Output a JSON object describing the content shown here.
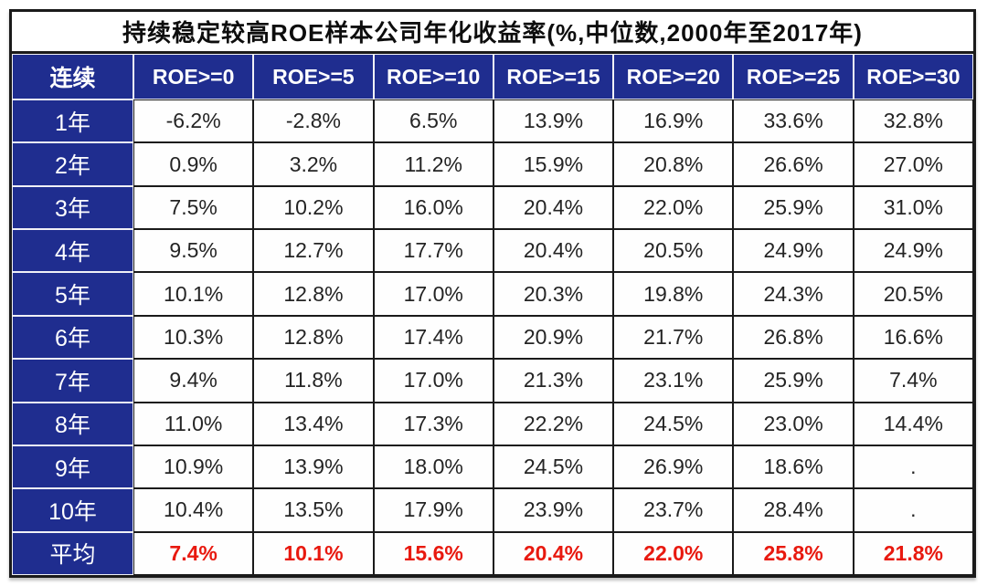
{
  "chart_data": {
    "type": "table",
    "title": "持续稳定较高ROE样本公司年化收益率(%,中位数,2000年至2017年)",
    "corner_header": "连续",
    "column_headers": [
      "ROE>=0",
      "ROE>=5",
      "ROE>=10",
      "ROE>=15",
      "ROE>=20",
      "ROE>=25",
      "ROE>=30"
    ],
    "rows": [
      {
        "label": "1年",
        "values": [
          "-6.2%",
          "-2.8%",
          "6.5%",
          "13.9%",
          "16.9%",
          "33.6%",
          "32.8%"
        ]
      },
      {
        "label": "2年",
        "values": [
          "0.9%",
          "3.2%",
          "11.2%",
          "15.9%",
          "20.8%",
          "26.6%",
          "27.0%"
        ]
      },
      {
        "label": "3年",
        "values": [
          "7.5%",
          "10.2%",
          "16.0%",
          "20.4%",
          "22.0%",
          "25.9%",
          "31.0%"
        ]
      },
      {
        "label": "4年",
        "values": [
          "9.5%",
          "12.7%",
          "17.7%",
          "20.4%",
          "20.5%",
          "24.9%",
          "24.9%"
        ]
      },
      {
        "label": "5年",
        "values": [
          "10.1%",
          "12.8%",
          "17.0%",
          "20.3%",
          "19.8%",
          "24.3%",
          "20.5%"
        ]
      },
      {
        "label": "6年",
        "values": [
          "10.3%",
          "12.8%",
          "17.4%",
          "20.9%",
          "21.7%",
          "26.8%",
          "16.6%"
        ]
      },
      {
        "label": "7年",
        "values": [
          "9.4%",
          "11.8%",
          "17.0%",
          "21.3%",
          "23.1%",
          "25.9%",
          "7.4%"
        ]
      },
      {
        "label": "8年",
        "values": [
          "11.0%",
          "13.4%",
          "17.3%",
          "22.2%",
          "24.5%",
          "23.0%",
          "14.4%"
        ]
      },
      {
        "label": "9年",
        "values": [
          "10.9%",
          "13.9%",
          "18.0%",
          "24.5%",
          "26.9%",
          "18.6%",
          "."
        ]
      },
      {
        "label": "10年",
        "values": [
          "10.4%",
          "13.5%",
          "17.9%",
          "23.9%",
          "23.7%",
          "28.4%",
          "."
        ]
      },
      {
        "label": "平均",
        "values": [
          "7.4%",
          "10.1%",
          "15.6%",
          "20.4%",
          "22.0%",
          "25.8%",
          "21.8%"
        ],
        "is_average": true
      }
    ]
  },
  "colors": {
    "header_bg": "#1f2d8f",
    "header_text": "#ffffff",
    "cell_text": "#242424",
    "average_text": "#e8190f",
    "grid_line": "#1a1a1a"
  }
}
